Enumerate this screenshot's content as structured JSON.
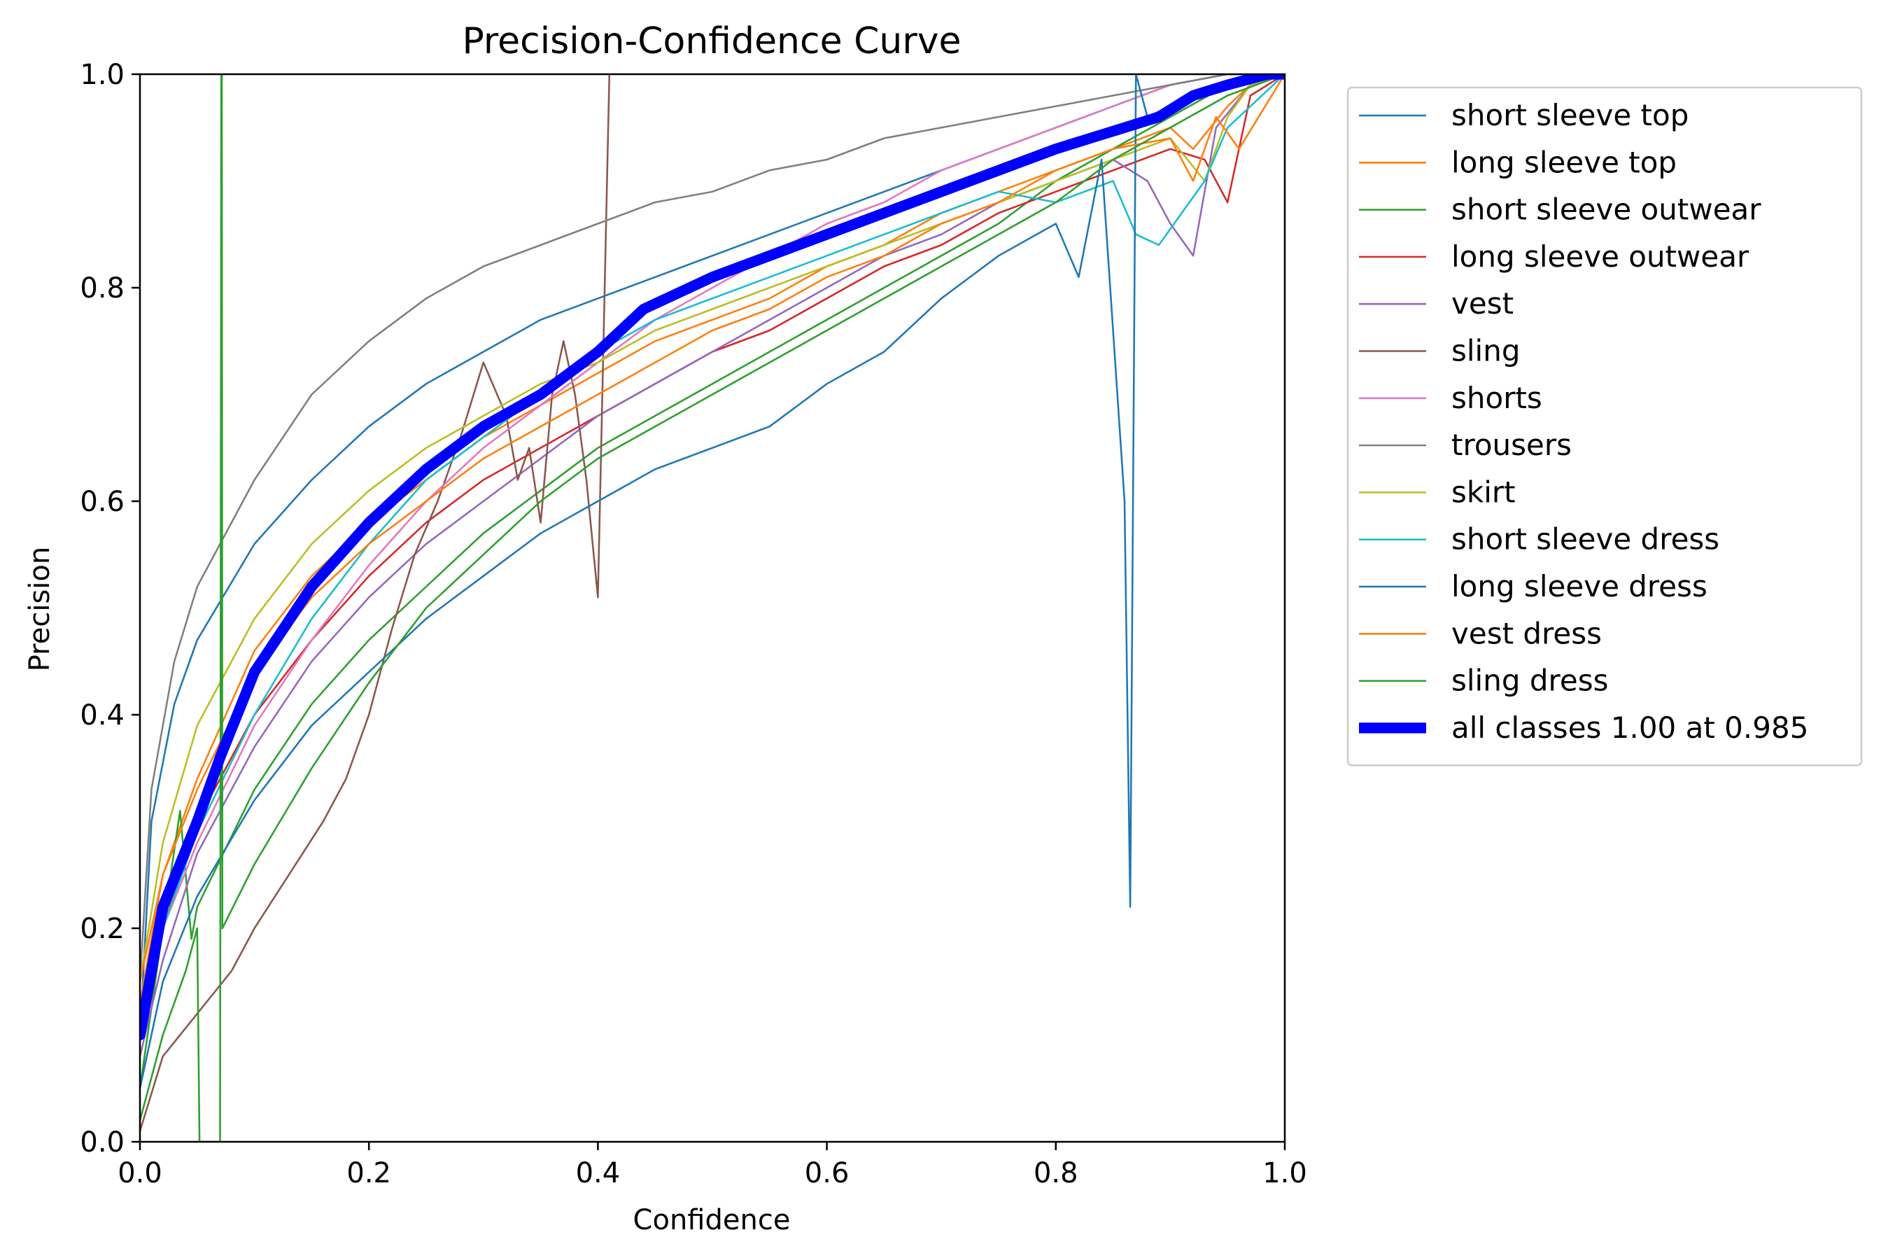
{
  "chart_data": {
    "type": "line",
    "title": "Precision-Confidence Curve",
    "xlabel": "Confidence",
    "ylabel": "Precision",
    "xlim": [
      0,
      1
    ],
    "ylim": [
      0,
      1
    ],
    "xticks": [
      "0.0",
      "0.2",
      "0.4",
      "0.6",
      "0.8",
      "1.0"
    ],
    "yticks": [
      "0.0",
      "0.2",
      "0.4",
      "0.6",
      "0.8",
      "1.0"
    ],
    "grid": false,
    "legend_position": "outside-right",
    "series": [
      {
        "name": "short sleeve top",
        "color": "#1f77b4",
        "width": 1.5,
        "x": [
          0,
          0.01,
          0.03,
          0.05,
          0.1,
          0.15,
          0.2,
          0.25,
          0.3,
          0.35,
          0.4,
          0.45,
          0.5,
          0.55,
          0.6,
          0.65,
          0.7,
          0.75,
          0.8,
          0.85,
          0.9,
          0.95,
          1.0
        ],
        "y": [
          0.1,
          0.3,
          0.41,
          0.47,
          0.56,
          0.62,
          0.67,
          0.71,
          0.74,
          0.77,
          0.79,
          0.81,
          0.83,
          0.85,
          0.87,
          0.89,
          0.91,
          0.93,
          0.95,
          0.97,
          0.99,
          1.0,
          1.0
        ]
      },
      {
        "name": "long sleeve top",
        "color": "#ff7f0e",
        "width": 1.5,
        "x": [
          0,
          0.02,
          0.05,
          0.1,
          0.15,
          0.2,
          0.25,
          0.3,
          0.35,
          0.4,
          0.45,
          0.5,
          0.55,
          0.6,
          0.65,
          0.7,
          0.75,
          0.8,
          0.85,
          0.9,
          0.92,
          0.95,
          0.97,
          1.0
        ],
        "y": [
          0.13,
          0.25,
          0.34,
          0.46,
          0.53,
          0.58,
          0.62,
          0.66,
          0.69,
          0.72,
          0.75,
          0.77,
          0.79,
          0.82,
          0.84,
          0.87,
          0.89,
          0.91,
          0.93,
          0.95,
          0.93,
          0.97,
          0.99,
          1.0
        ]
      },
      {
        "name": "short sleeve outwear",
        "color": "#2ca02c",
        "width": 1.5,
        "x": [
          0,
          0.02,
          0.035,
          0.045,
          0.05,
          0.1,
          0.15,
          0.2,
          0.25,
          0.3,
          0.35,
          0.4,
          0.45,
          0.5,
          0.55,
          0.6,
          0.65,
          0.7,
          0.75,
          0.8,
          0.85,
          0.9,
          0.95,
          1.0
        ],
        "y": [
          0.05,
          0.2,
          0.31,
          0.19,
          0.22,
          0.33,
          0.41,
          0.47,
          0.52,
          0.57,
          0.61,
          0.65,
          0.68,
          0.71,
          0.74,
          0.77,
          0.8,
          0.83,
          0.86,
          0.9,
          0.93,
          0.96,
          0.99,
          1.0
        ]
      },
      {
        "name": "long sleeve outwear",
        "color": "#d62728",
        "width": 1.5,
        "x": [
          0,
          0.02,
          0.05,
          0.1,
          0.15,
          0.2,
          0.25,
          0.3,
          0.35,
          0.4,
          0.45,
          0.5,
          0.55,
          0.6,
          0.65,
          0.7,
          0.75,
          0.8,
          0.85,
          0.9,
          0.93,
          0.95,
          0.97,
          1.0
        ],
        "y": [
          0.1,
          0.2,
          0.3,
          0.4,
          0.47,
          0.53,
          0.58,
          0.62,
          0.65,
          0.68,
          0.71,
          0.74,
          0.76,
          0.79,
          0.82,
          0.84,
          0.87,
          0.89,
          0.91,
          0.93,
          0.92,
          0.88,
          0.98,
          1.0
        ]
      },
      {
        "name": "vest",
        "color": "#9467bd",
        "width": 1.5,
        "x": [
          0,
          0.02,
          0.05,
          0.1,
          0.15,
          0.2,
          0.25,
          0.3,
          0.35,
          0.4,
          0.45,
          0.5,
          0.55,
          0.6,
          0.65,
          0.7,
          0.75,
          0.8,
          0.85,
          0.88,
          0.9,
          0.92,
          0.94,
          0.97,
          1.0
        ],
        "y": [
          0.08,
          0.17,
          0.27,
          0.37,
          0.45,
          0.51,
          0.56,
          0.6,
          0.64,
          0.68,
          0.71,
          0.74,
          0.77,
          0.8,
          0.83,
          0.85,
          0.88,
          0.9,
          0.92,
          0.9,
          0.86,
          0.83,
          0.95,
          0.99,
          1.0
        ]
      },
      {
        "name": "sling",
        "color": "#8c564b",
        "width": 1.5,
        "x": [
          0,
          0.02,
          0.05,
          0.08,
          0.1,
          0.13,
          0.16,
          0.18,
          0.2,
          0.22,
          0.24,
          0.26,
          0.28,
          0.3,
          0.32,
          0.33,
          0.34,
          0.35,
          0.36,
          0.37,
          0.38,
          0.39,
          0.4,
          0.41
        ],
        "y": [
          0.01,
          0.08,
          0.12,
          0.16,
          0.2,
          0.25,
          0.3,
          0.34,
          0.4,
          0.48,
          0.55,
          0.6,
          0.66,
          0.73,
          0.68,
          0.62,
          0.65,
          0.58,
          0.7,
          0.75,
          0.7,
          0.62,
          0.51,
          1.0
        ]
      },
      {
        "name": "shorts",
        "color": "#e377c2",
        "width": 1.5,
        "x": [
          0,
          0.02,
          0.05,
          0.1,
          0.15,
          0.2,
          0.25,
          0.3,
          0.35,
          0.4,
          0.45,
          0.5,
          0.55,
          0.6,
          0.65,
          0.7,
          0.75,
          0.8,
          0.85,
          0.9,
          0.95,
          1.0
        ],
        "y": [
          0.1,
          0.2,
          0.28,
          0.39,
          0.47,
          0.54,
          0.6,
          0.65,
          0.69,
          0.73,
          0.77,
          0.8,
          0.83,
          0.86,
          0.88,
          0.91,
          0.93,
          0.95,
          0.97,
          0.99,
          1.0,
          1.0
        ]
      },
      {
        "name": "trousers",
        "color": "#7f7f7f",
        "width": 1.5,
        "x": [
          0,
          0.01,
          0.03,
          0.05,
          0.08,
          0.1,
          0.15,
          0.2,
          0.25,
          0.3,
          0.35,
          0.4,
          0.45,
          0.5,
          0.55,
          0.6,
          0.65,
          0.7,
          0.75,
          0.8,
          0.85,
          0.9,
          0.95,
          1.0
        ],
        "y": [
          0.15,
          0.33,
          0.45,
          0.52,
          0.58,
          0.62,
          0.7,
          0.75,
          0.79,
          0.82,
          0.84,
          0.86,
          0.88,
          0.89,
          0.91,
          0.92,
          0.94,
          0.95,
          0.96,
          0.97,
          0.98,
          0.99,
          1.0,
          1.0
        ]
      },
      {
        "name": "skirt",
        "color": "#bcbd22",
        "width": 1.5,
        "x": [
          0,
          0.02,
          0.05,
          0.1,
          0.15,
          0.2,
          0.25,
          0.3,
          0.35,
          0.4,
          0.45,
          0.5,
          0.55,
          0.6,
          0.65,
          0.7,
          0.75,
          0.8,
          0.85,
          0.9,
          0.93,
          0.95,
          0.97,
          1.0
        ],
        "y": [
          0.15,
          0.28,
          0.39,
          0.49,
          0.56,
          0.61,
          0.65,
          0.68,
          0.71,
          0.73,
          0.76,
          0.78,
          0.8,
          0.82,
          0.84,
          0.86,
          0.88,
          0.9,
          0.92,
          0.94,
          0.9,
          0.96,
          0.99,
          1.0
        ]
      },
      {
        "name": "short sleeve dress",
        "color": "#17becf",
        "width": 1.5,
        "x": [
          0,
          0.02,
          0.05,
          0.1,
          0.15,
          0.2,
          0.25,
          0.3,
          0.35,
          0.4,
          0.45,
          0.5,
          0.55,
          0.6,
          0.65,
          0.7,
          0.75,
          0.8,
          0.85,
          0.87,
          0.89,
          0.91,
          0.93,
          0.95,
          1.0
        ],
        "y": [
          0.1,
          0.2,
          0.29,
          0.4,
          0.49,
          0.56,
          0.62,
          0.66,
          0.7,
          0.74,
          0.77,
          0.79,
          0.81,
          0.83,
          0.85,
          0.87,
          0.89,
          0.88,
          0.9,
          0.85,
          0.84,
          0.87,
          0.9,
          0.95,
          1.0
        ]
      },
      {
        "name": "long sleeve dress",
        "color": "#1f77b4",
        "width": 1.5,
        "x": [
          0,
          0.02,
          0.05,
          0.1,
          0.15,
          0.2,
          0.25,
          0.3,
          0.35,
          0.4,
          0.45,
          0.5,
          0.55,
          0.6,
          0.65,
          0.7,
          0.75,
          0.8,
          0.82,
          0.84,
          0.86,
          0.865,
          0.87,
          0.88,
          0.9,
          0.95,
          1.0
        ],
        "y": [
          0.05,
          0.15,
          0.23,
          0.32,
          0.39,
          0.44,
          0.49,
          0.53,
          0.57,
          0.6,
          0.63,
          0.65,
          0.67,
          0.71,
          0.74,
          0.79,
          0.83,
          0.86,
          0.81,
          0.92,
          0.6,
          0.22,
          1.0,
          0.96,
          0.97,
          0.99,
          1.0
        ]
      },
      {
        "name": "vest dress",
        "color": "#ff7f0e",
        "width": 1.5,
        "x": [
          0,
          0.02,
          0.05,
          0.1,
          0.15,
          0.2,
          0.25,
          0.3,
          0.35,
          0.4,
          0.45,
          0.5,
          0.55,
          0.6,
          0.65,
          0.7,
          0.75,
          0.8,
          0.85,
          0.9,
          0.92,
          0.94,
          0.96,
          1.0
        ],
        "y": [
          0.15,
          0.25,
          0.33,
          0.44,
          0.51,
          0.56,
          0.6,
          0.64,
          0.67,
          0.7,
          0.73,
          0.76,
          0.78,
          0.81,
          0.83,
          0.86,
          0.88,
          0.91,
          0.93,
          0.94,
          0.9,
          0.96,
          0.93,
          1.0
        ]
      },
      {
        "name": "sling dress",
        "color": "#2ca02c",
        "width": 1.5,
        "x": [
          0,
          0.02,
          0.04,
          0.05,
          0.052,
          0.07,
          0.071,
          0.0715,
          0.072,
          0.1,
          0.15,
          0.2,
          0.25,
          0.3,
          0.35,
          0.4,
          0.45,
          0.5,
          0.55,
          0.6,
          0.65,
          0.7,
          0.75,
          0.8,
          0.85,
          0.9,
          0.95,
          1.0
        ],
        "y": [
          0.02,
          0.1,
          0.16,
          0.2,
          0.0,
          0.0,
          1.0,
          1.0,
          0.2,
          0.26,
          0.35,
          0.43,
          0.5,
          0.55,
          0.6,
          0.64,
          0.67,
          0.7,
          0.73,
          0.76,
          0.79,
          0.82,
          0.85,
          0.88,
          0.92,
          0.95,
          0.98,
          1.0
        ]
      },
      {
        "name": "all classes 1.00 at 0.985",
        "color": "#0000ff",
        "width": 9,
        "x": [
          0,
          0.02,
          0.05,
          0.07,
          0.1,
          0.15,
          0.2,
          0.25,
          0.3,
          0.35,
          0.4,
          0.44,
          0.5,
          0.55,
          0.6,
          0.65,
          0.7,
          0.75,
          0.8,
          0.83,
          0.86,
          0.89,
          0.92,
          0.95,
          0.985,
          1.0
        ],
        "y": [
          0.1,
          0.22,
          0.3,
          0.36,
          0.44,
          0.52,
          0.58,
          0.63,
          0.67,
          0.7,
          0.74,
          0.78,
          0.81,
          0.83,
          0.85,
          0.87,
          0.89,
          0.91,
          0.93,
          0.94,
          0.95,
          0.96,
          0.98,
          0.99,
          1.0,
          1.0
        ]
      }
    ]
  }
}
